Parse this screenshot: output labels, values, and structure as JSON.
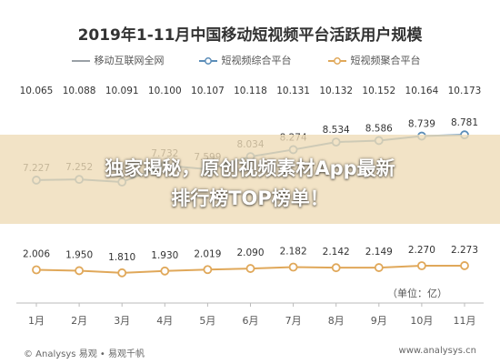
{
  "chart_data": {
    "type": "line",
    "title": "2019年1-11月中国移动短视频平台活跃用户规模",
    "categories": [
      "1月",
      "2月",
      "3月",
      "4月",
      "5月",
      "6月",
      "7月",
      "8月",
      "9月",
      "10月",
      "11月"
    ],
    "series": [
      {
        "name": "移动互联网全网",
        "color": "#9aa0a6",
        "values": [
          10.065,
          10.088,
          10.091,
          10.1,
          10.107,
          10.118,
          10.131,
          10.132,
          10.152,
          10.164,
          10.173
        ],
        "labels": [
          "10.065",
          "10.088",
          "10.091",
          "10.100",
          "10.107",
          "10.118",
          "10.131",
          "10.132",
          "10.152",
          "10.164",
          "10.173"
        ]
      },
      {
        "name": "短视频综合平台",
        "color": "#5b8db8",
        "values": [
          7.227,
          7.252,
          7.162,
          7.732,
          7.599,
          8.034,
          8.274,
          8.534,
          8.586,
          8.739,
          8.781
        ],
        "labels": [
          "7.227",
          "7.252",
          "7.162",
          "7.732",
          "7.599",
          "8.034",
          "8.274",
          "8.534",
          "8.586",
          "8.739",
          "8.781"
        ]
      },
      {
        "name": "短视频聚合平台",
        "color": "#e0a85a",
        "values": [
          2.006,
          1.95,
          1.81,
          1.93,
          2.019,
          2.09,
          2.182,
          2.142,
          2.149,
          2.27,
          2.273
        ],
        "labels": [
          "2.006",
          "1.950",
          "1.810",
          "1.930",
          "2.019",
          "2.090",
          "2.182",
          "2.142",
          "2.149",
          "2.270",
          "2.273"
        ]
      }
    ],
    "unit": "（单位：亿）",
    "grid": false,
    "legend_position": "top"
  },
  "overlay": {
    "line1": "独家揭秘，原创视频素材App最新",
    "line2": "排行榜TOP榜单！"
  },
  "footer": {
    "left": "© Analysys 易观 • 易观千帆",
    "right": "www.analysys.cn"
  }
}
